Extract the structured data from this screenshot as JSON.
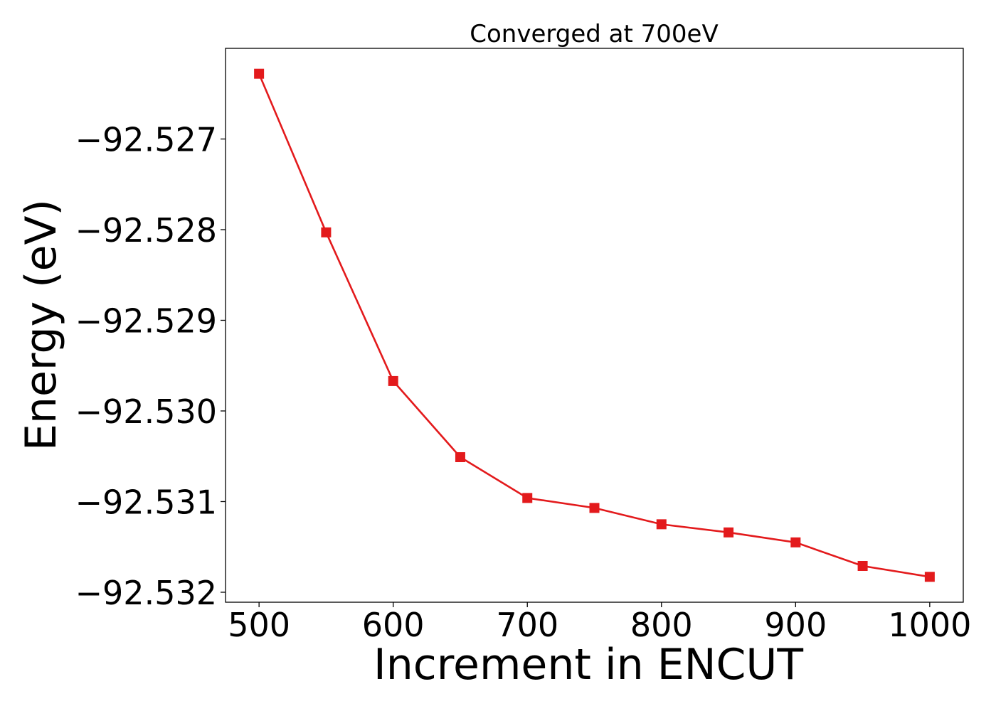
{
  "chart_data": {
    "type": "line",
    "title": "Converged at 700eV",
    "xlabel": "Increment in ENCUT",
    "ylabel": "Energy (eV)",
    "x": [
      500,
      550,
      600,
      650,
      700,
      750,
      800,
      850,
      900,
      950,
      1000
    ],
    "series": [
      {
        "values": [
          -92.52628,
          -92.52803,
          -92.52967,
          -92.53051,
          -92.53096,
          -92.53107,
          -92.53125,
          -92.53134,
          -92.53145,
          -92.53171,
          -92.53183
        ],
        "color": "#e31a1c",
        "marker": "square"
      }
    ],
    "xticks": [
      500,
      600,
      700,
      800,
      900,
      1000
    ],
    "xtick_labels": [
      "500",
      "600",
      "700",
      "800",
      "900",
      "1000"
    ],
    "yticks": [
      -92.527,
      -92.528,
      -92.529,
      -92.53,
      -92.531,
      -92.532
    ],
    "ytick_labels": [
      "−92.527",
      "−92.528",
      "−92.529",
      "−92.530",
      "−92.531",
      "−92.532"
    ],
    "xlim": [
      475,
      1025
    ],
    "ylim": [
      -92.53211,
      -92.526
    ],
    "grid": false,
    "legend": "none"
  }
}
